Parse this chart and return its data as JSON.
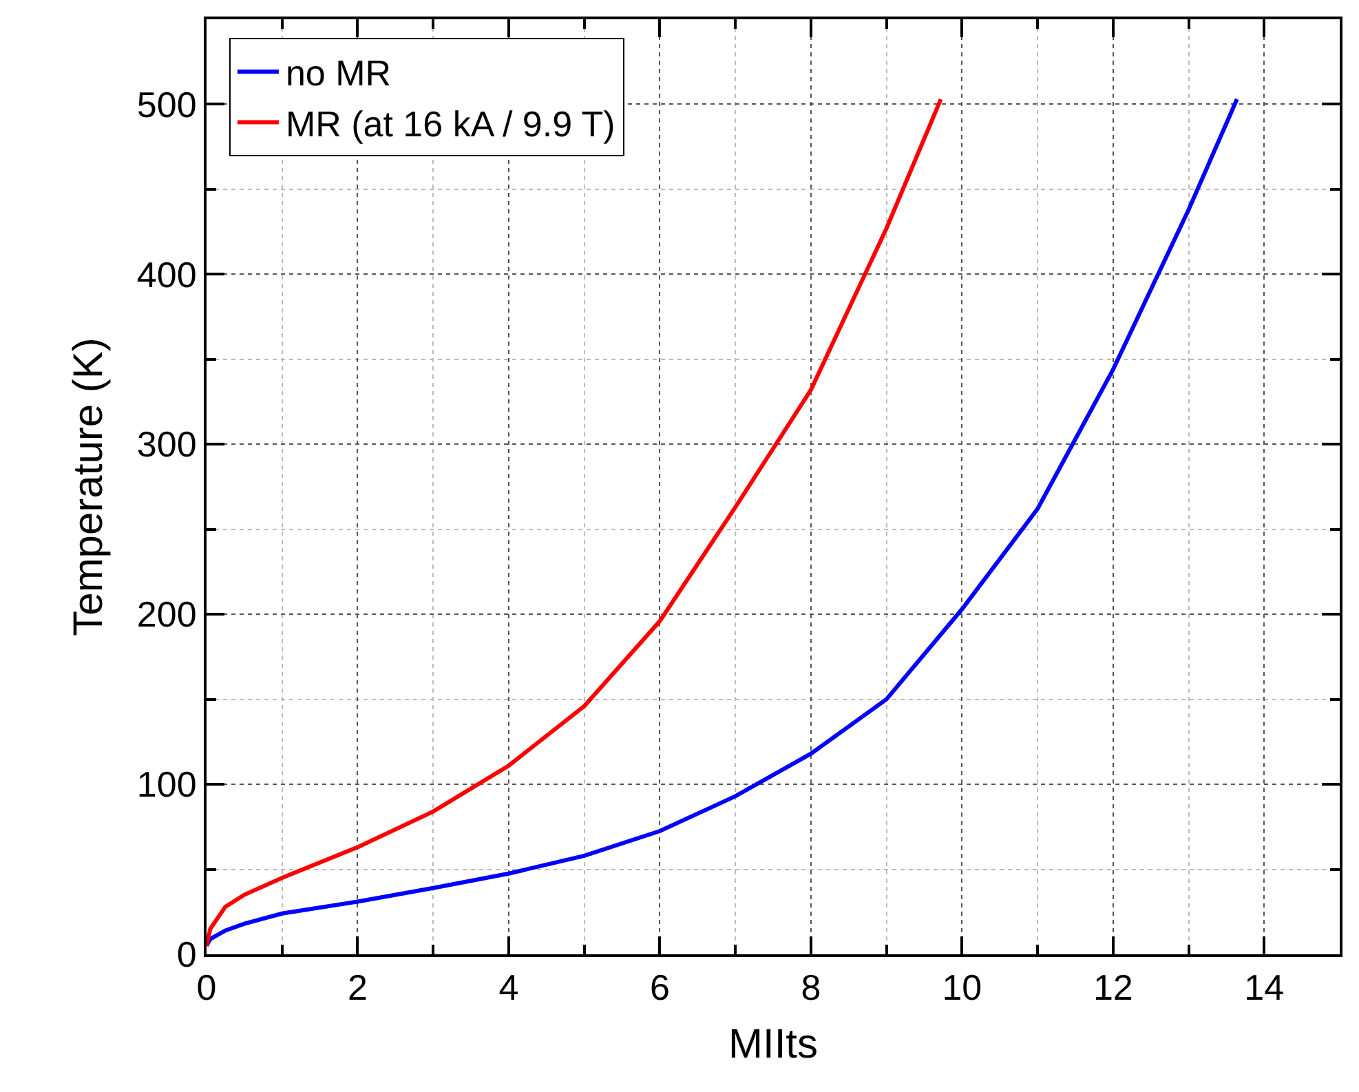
{
  "chart_data": {
    "type": "line",
    "xlabel": "MIIts",
    "ylabel": "Temperature (K)",
    "xlim": [
      0,
      15
    ],
    "xticks": [
      0,
      2,
      4,
      6,
      8,
      10,
      12,
      14
    ],
    "ylim": [
      0,
      550
    ],
    "yticks": [
      0,
      100,
      200,
      300,
      400,
      500
    ],
    "grid": true,
    "legend": "top left",
    "line_style": "solid",
    "marker": "none",
    "series": [
      {
        "name": "no MR",
        "color": "#0000ff",
        "x": [
          0,
          0.05,
          0.25,
          0.5,
          1,
          2,
          3,
          4,
          5,
          6,
          7,
          8,
          9,
          10,
          11,
          12,
          13,
          13.64
        ],
        "values": [
          5,
          9,
          14,
          18,
          24,
          31,
          39,
          47.5,
          58,
          72.5,
          93,
          118,
          150,
          203,
          262,
          344,
          438,
          503
        ]
      },
      {
        "name": "MR (at 16 kA / 9.9 T)",
        "color": "#ff0000",
        "x": [
          0,
          0.05,
          0.25,
          0.5,
          1,
          2,
          3,
          4,
          5,
          6,
          7,
          8,
          9,
          9.72
        ],
        "values": [
          5,
          15,
          28,
          35,
          45,
          63,
          84,
          111,
          146,
          196,
          263,
          332,
          427,
          503
        ]
      }
    ]
  }
}
